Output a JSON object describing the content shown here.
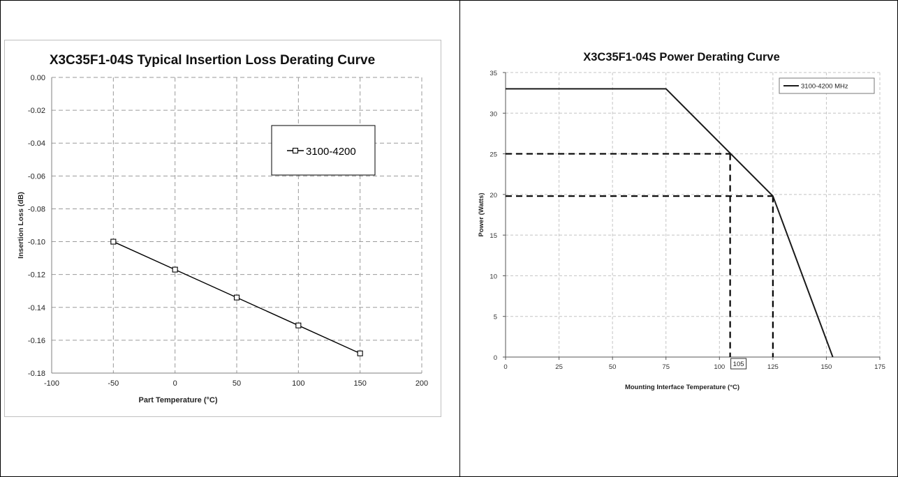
{
  "chart_data": [
    {
      "type": "line",
      "title": "X3C35F1-04S Typical Insertion Loss Derating Curve",
      "xlabel": "Part Temperature (°C)",
      "ylabel": "Insertion Loss (dB)",
      "xlim": [
        -100,
        200
      ],
      "ylim": [
        -0.18,
        0.0
      ],
      "xticks": [
        -100,
        -50,
        0,
        50,
        100,
        150,
        200
      ],
      "yticks": [
        0.0,
        -0.02,
        -0.04,
        -0.06,
        -0.08,
        -0.1,
        -0.12,
        -0.14,
        -0.16,
        -0.18
      ],
      "xtick_labels": [
        "-100",
        "-50",
        "0",
        "50",
        "100",
        "150",
        "200"
      ],
      "ytick_labels": [
        "0.00",
        "-0.02",
        "-0.04",
        "-0.06",
        "-0.08",
        "-0.10",
        "-0.12",
        "-0.14",
        "-0.16",
        "-0.18"
      ],
      "grid": "dashed",
      "legend_position": "top-right",
      "series": [
        {
          "name": "3100-4200",
          "marker": "square",
          "x": [
            -50,
            0,
            50,
            100,
            150
          ],
          "y": [
            -0.1,
            -0.117,
            -0.134,
            -0.151,
            -0.168
          ]
        }
      ]
    },
    {
      "type": "line",
      "title": "X3C35F1-04S Power Derating Curve",
      "xlabel": "Mounting Interface Temperature (°C)",
      "ylabel": "Power (Watts)",
      "xlim": [
        0,
        175
      ],
      "ylim": [
        0,
        35
      ],
      "xticks": [
        0,
        25,
        50,
        75,
        100,
        125,
        150,
        175
      ],
      "yticks": [
        0,
        5,
        10,
        15,
        20,
        25,
        30,
        35
      ],
      "xtick_labels": [
        "0",
        "25",
        "50",
        "75",
        "100",
        "125",
        "150",
        "175"
      ],
      "ytick_labels": [
        "0",
        "5",
        "10",
        "15",
        "20",
        "25",
        "30",
        "35"
      ],
      "grid": "dashed",
      "legend_position": "top-right",
      "series": [
        {
          "name": "3100-4200 MHz",
          "x": [
            0,
            75,
            125,
            153
          ],
          "y": [
            33,
            33,
            19.8,
            0
          ]
        }
      ],
      "reference_lines": [
        {
          "x": 105,
          "y": 25
        },
        {
          "x": 125,
          "y": 19.8
        }
      ],
      "annotations": [
        {
          "text": "105",
          "x": 105,
          "y": 0
        }
      ]
    }
  ]
}
